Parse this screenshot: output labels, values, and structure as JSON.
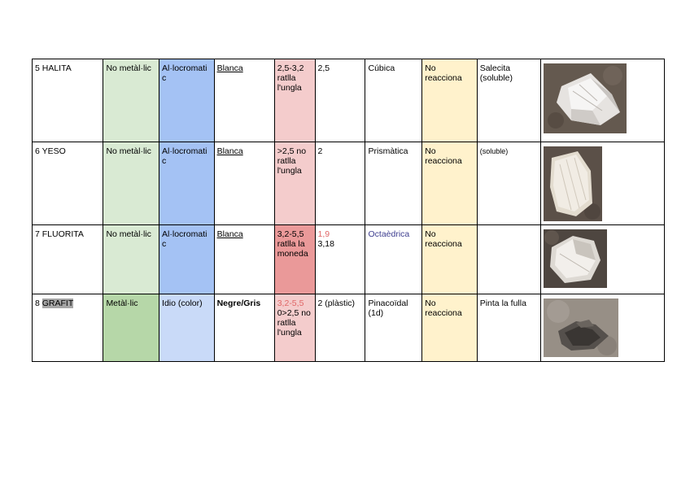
{
  "rows": [
    {
      "name": "5 HALITA",
      "lustre": "No metàl·lic",
      "colour_type": "Al·locromatic",
      "streak": "Blanca",
      "hardness": "2,5-3,2 ratlla l'ungla",
      "density": "2,5",
      "crystal": "Cúbica",
      "acid": "No reacciona",
      "other": "Salecita (soluble)",
      "photo_icon": "halite-crystal-photo"
    },
    {
      "name": "6 YESO",
      "lustre": "No metàl·lic",
      "colour_type": "Al·locromatic",
      "streak": "Blanca",
      "hardness": ">2,5 no ratlla l'ungla",
      "density": "2",
      "crystal": "Prismàtica",
      "acid": "No reacciona",
      "other": "(soluble)",
      "photo_icon": "gypsum-crystal-photo"
    },
    {
      "name": "7 FLUORITA",
      "lustre": "No metàl·lic",
      "colour_type": "Al·locromatic",
      "streak": "Blanca",
      "hardness": "3,2-5,5 ratlla la moneda",
      "density_a": "1,9",
      "density_b": "3,18",
      "crystal": "Octaèdrica",
      "acid": "No reacciona",
      "other": "",
      "photo_icon": "fluorite-crystal-photo"
    },
    {
      "name_prefix": "8 ",
      "name_highlight": "GRAFIT",
      "lustre": "Metàl·lic",
      "colour_type": "Idio (color)",
      "streak": "Negre/Gris",
      "hardness_a": "3,2-5,5",
      "hardness_b": "0>2,5 no ratlla l'ungla",
      "density": "2 (plàstic)",
      "crystal": "Pinacoïdal (1d)",
      "acid": "No reacciona",
      "other": "Pinta la fulla",
      "photo_icon": "graphite-mineral-photo"
    }
  ],
  "colors": {
    "green": "#d9ead3",
    "green_dark": "#b6d7a8",
    "blue": "#a4c2f4",
    "blue_light": "#c9daf8",
    "pink": "#f4cccc",
    "pink_dark": "#ea9999",
    "yellow": "#fff2cc"
  }
}
